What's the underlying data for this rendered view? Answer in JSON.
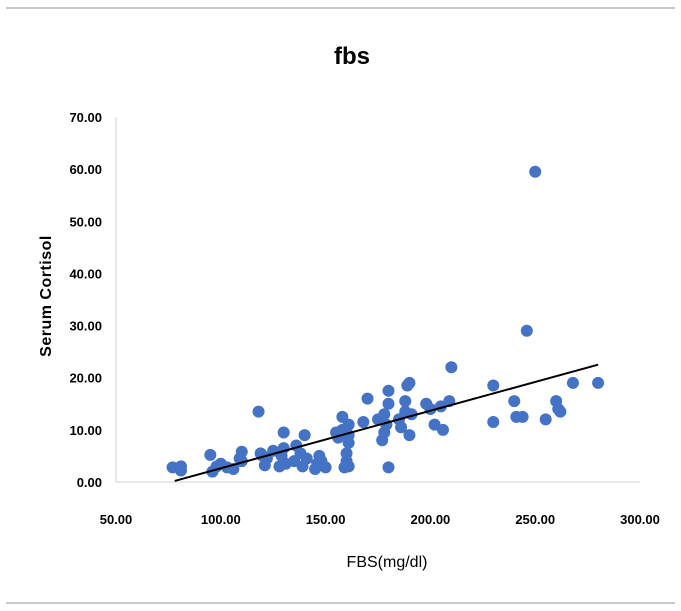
{
  "chart_data": {
    "type": "scatter",
    "title": "fbs",
    "xlabel": "FBS(mg/dl)",
    "ylabel": "Serum Cortisol",
    "xlim": [
      50,
      300
    ],
    "ylim": [
      0,
      70
    ],
    "x_ticks": [
      "50.00",
      "100.00",
      "150.00",
      "200.00",
      "250.00",
      "300.00"
    ],
    "y_ticks": [
      "0.00",
      "10.00",
      "20.00",
      "30.00",
      "40.00",
      "50.00",
      "60.00",
      "70.00"
    ],
    "grid": false,
    "legend": "none",
    "marker_color": "#4472C4",
    "trendline": {
      "type": "linear",
      "color": "#000000",
      "x": [
        78,
        280
      ],
      "y": [
        0.2,
        22.5
      ]
    },
    "series": [
      {
        "points": [
          [
            77,
            2.8
          ],
          [
            81,
            2.2
          ],
          [
            81,
            3.0
          ],
          [
            95,
            5.2
          ],
          [
            96,
            2.0
          ],
          [
            98,
            3.0
          ],
          [
            100,
            3.5
          ],
          [
            103,
            2.8
          ],
          [
            106,
            2.5
          ],
          [
            109,
            4.5
          ],
          [
            110,
            5.8
          ],
          [
            110,
            4.0
          ],
          [
            118,
            13.5
          ],
          [
            119,
            5.5
          ],
          [
            120,
            5.0
          ],
          [
            121,
            3.2
          ],
          [
            122,
            4.5
          ],
          [
            125,
            6.0
          ],
          [
            128,
            3.0
          ],
          [
            129,
            5.0
          ],
          [
            130,
            9.5
          ],
          [
            130,
            6.5
          ],
          [
            131,
            3.5
          ],
          [
            135,
            4.0
          ],
          [
            136,
            7.0
          ],
          [
            138,
            5.5
          ],
          [
            139,
            3.0
          ],
          [
            140,
            9.0
          ],
          [
            141,
            4.5
          ],
          [
            145,
            2.5
          ],
          [
            146,
            3.5
          ],
          [
            147,
            5.0
          ],
          [
            148,
            4.0
          ],
          [
            150,
            2.8
          ],
          [
            155,
            9.5
          ],
          [
            156,
            8.5
          ],
          [
            158,
            10.0
          ],
          [
            158,
            12.5
          ],
          [
            159,
            2.8
          ],
          [
            160,
            4.0
          ],
          [
            160,
            5.5
          ],
          [
            161,
            7.5
          ],
          [
            161,
            11.0
          ],
          [
            161,
            9.0
          ],
          [
            161,
            3.0
          ],
          [
            168,
            11.5
          ],
          [
            170,
            16.0
          ],
          [
            175,
            12.0
          ],
          [
            177,
            8.0
          ],
          [
            178,
            9.5
          ],
          [
            178,
            13.0
          ],
          [
            179,
            11.0
          ],
          [
            180,
            2.8
          ],
          [
            180,
            15.0
          ],
          [
            180,
            17.5
          ],
          [
            185,
            12.0
          ],
          [
            186,
            10.5
          ],
          [
            188,
            13.5
          ],
          [
            188,
            15.5
          ],
          [
            189,
            18.5
          ],
          [
            190,
            19.0
          ],
          [
            190,
            9.0
          ],
          [
            191,
            13.0
          ],
          [
            198,
            15.0
          ],
          [
            200,
            14.0
          ],
          [
            202,
            11.0
          ],
          [
            205,
            14.5
          ],
          [
            206,
            10.0
          ],
          [
            209,
            15.5
          ],
          [
            210,
            22.0
          ],
          [
            230,
            18.5
          ],
          [
            230,
            11.5
          ],
          [
            240,
            15.5
          ],
          [
            241,
            12.5
          ],
          [
            244,
            12.5
          ],
          [
            246,
            29.0
          ],
          [
            250,
            59.5
          ],
          [
            255,
            12.0
          ],
          [
            260,
            15.5
          ],
          [
            261,
            14.0
          ],
          [
            262,
            13.5
          ],
          [
            268,
            19.0
          ],
          [
            280,
            19.0
          ]
        ]
      }
    ]
  }
}
